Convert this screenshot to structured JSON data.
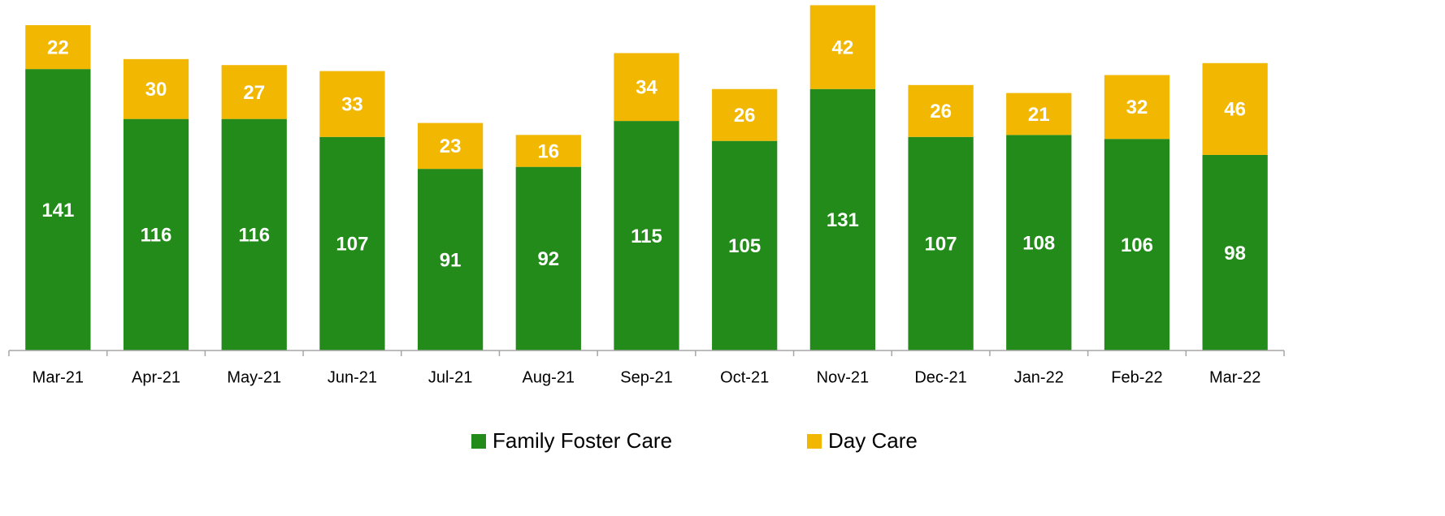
{
  "chart_data": {
    "type": "stacked-bar",
    "categories": [
      "Mar-21",
      "Apr-21",
      "May-21",
      "Jun-21",
      "Jul-21",
      "Aug-21",
      "Sep-21",
      "Oct-21",
      "Nov-21",
      "Dec-21",
      "Jan-22",
      "Feb-22",
      "Mar-22"
    ],
    "series": [
      {
        "name": "Family Foster Care",
        "color": "#228b19",
        "values": [
          141,
          116,
          116,
          107,
          91,
          92,
          115,
          105,
          131,
          107,
          108,
          106,
          98
        ]
      },
      {
        "name": "Day Care",
        "color": "#f2b700",
        "values": [
          22,
          30,
          27,
          33,
          23,
          16,
          34,
          26,
          42,
          26,
          21,
          32,
          46
        ]
      }
    ],
    "ylim": [
      0,
      175
    ],
    "legend": "bottom"
  }
}
